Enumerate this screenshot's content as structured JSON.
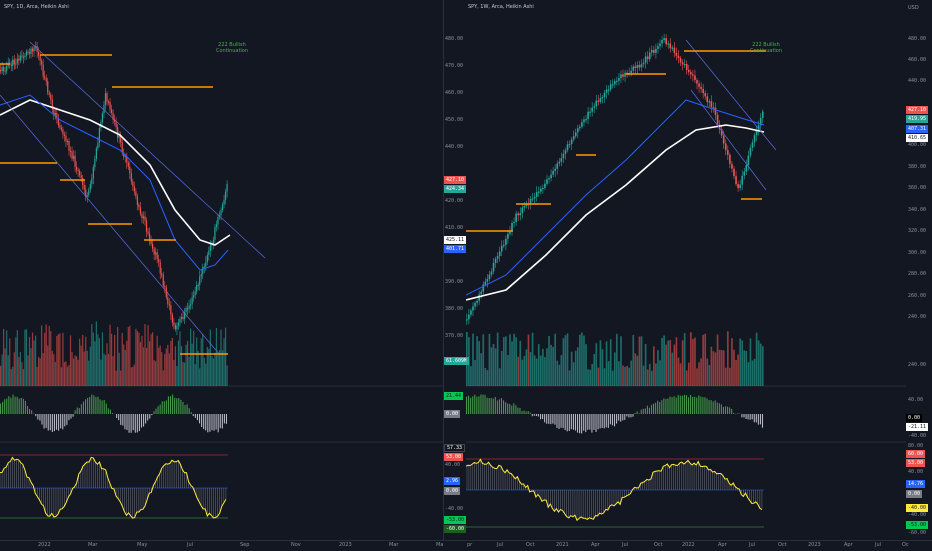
{
  "left": {
    "title": "SPY, 1D, Arca, Heikin Ashi",
    "annotation": "222 Bullish\nContinuation",
    "y_ticks": [
      "480.00",
      "470.00",
      "460.00",
      "450.00",
      "440.00",
      "430.00",
      "420.00",
      "410.00",
      "400.00",
      "390.00",
      "380.00",
      "370.00"
    ],
    "badges": [
      "427.10",
      "424.34",
      "425.11",
      "401.71",
      "61.609M"
    ],
    "osc_badges": [
      "21.44",
      "0.00"
    ],
    "rsi_badges": [
      "57.33",
      "53.00",
      "40.00",
      "2.96",
      "0.00",
      "-40.00",
      "-53.00",
      "-60.00"
    ],
    "x_ticks": [
      "2022",
      "Mar",
      "May",
      "Jul",
      "Sep",
      "Nov",
      "2023",
      "Mar",
      "Ma"
    ]
  },
  "right": {
    "title": "SPY, 1W, Arca, Heikin Ashi",
    "currency": "USD",
    "annotation": "222 Bullish\nContinuation",
    "y_ticks": [
      "480.00",
      "460.00",
      "440.00",
      "420.00",
      "400.00",
      "380.00",
      "360.00",
      "340.00",
      "320.00",
      "300.00",
      "280.00",
      "260.00",
      "240.00"
    ],
    "badges": [
      "427.10",
      "419.95",
      "407.31",
      "410.65",
      "286.808M"
    ],
    "osc_ticks": [
      "40.00",
      "0.00",
      "-20.00",
      "-40.00"
    ],
    "osc_badges": [
      "0.00",
      "-21.11"
    ],
    "rsi_ticks": [
      "80.00",
      "60.00",
      "53.00",
      "40.00",
      "14.76",
      "0.00",
      "-40.00",
      "-53.00",
      "-60.00"
    ],
    "x_ticks": [
      "pr",
      "Jul",
      "Oct",
      "2021",
      "Apr",
      "Jul",
      "Oct",
      "2022",
      "Apr",
      "Jul",
      "Oct",
      "2023",
      "Apr",
      "Jul",
      "Oc"
    ]
  },
  "colors": {
    "bg": "#131722",
    "up": "#26a69a",
    "down": "#ef5350",
    "ma_fast": "#2962ff",
    "ma_slow": "#ffffff",
    "level": "#ff9800",
    "osc_pos": "#4caf50",
    "rsi": "#ffeb3b"
  }
}
